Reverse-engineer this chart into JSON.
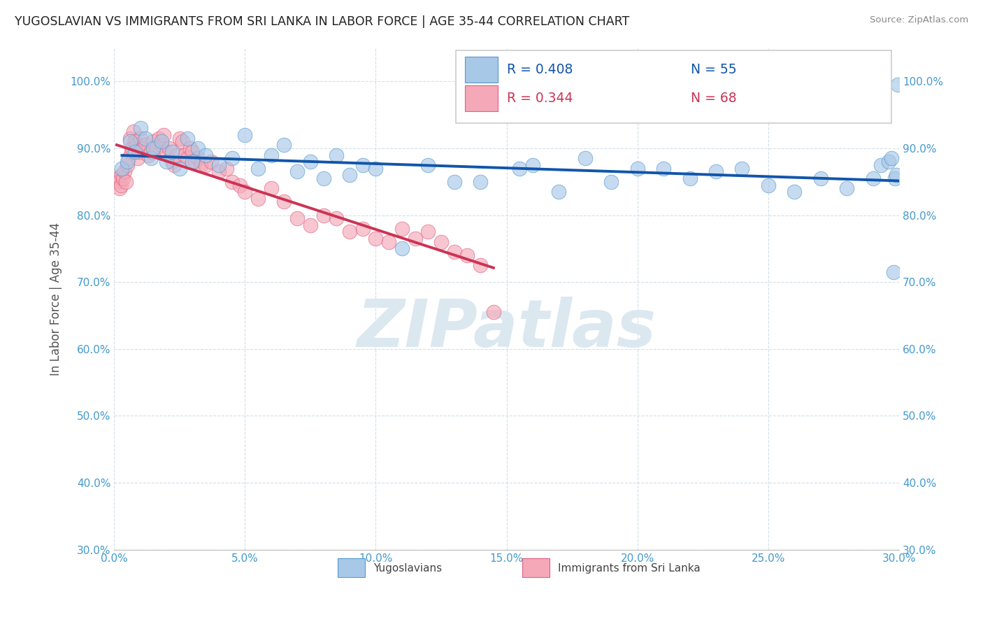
{
  "title": "YUGOSLAVIAN VS IMMIGRANTS FROM SRI LANKA IN LABOR FORCE | AGE 35-44 CORRELATION CHART",
  "source": "Source: ZipAtlas.com",
  "ylabel": "In Labor Force | Age 35-44",
  "xlim": [
    0.0,
    30.0
  ],
  "ylim": [
    30.0,
    105.0
  ],
  "xtick_vals": [
    0,
    5,
    10,
    15,
    20,
    25,
    30
  ],
  "ytick_vals": [
    30,
    40,
    50,
    60,
    70,
    80,
    90,
    100
  ],
  "blue_R": 0.408,
  "blue_N": 55,
  "pink_R": 0.344,
  "pink_N": 68,
  "legend_label_blue": "Yugoslavians",
  "legend_label_pink": "Immigrants from Sri Lanka",
  "blue_color": "#a8c8e8",
  "pink_color": "#f4a8b8",
  "blue_edge_color": "#5599cc",
  "pink_edge_color": "#e06080",
  "blue_line_color": "#1155aa",
  "pink_line_color": "#cc3355",
  "watermark": "ZIPatlas",
  "watermark_color": "#dce8f0",
  "blue_x": [
    0.3,
    0.5,
    0.6,
    0.8,
    1.0,
    1.2,
    1.4,
    1.5,
    1.8,
    2.0,
    2.2,
    2.5,
    2.8,
    3.0,
    3.2,
    3.5,
    4.0,
    4.5,
    5.0,
    5.5,
    6.0,
    6.5,
    7.0,
    7.5,
    8.0,
    8.5,
    9.0,
    9.5,
    10.0,
    11.0,
    12.0,
    13.0,
    14.0,
    15.5,
    16.0,
    17.0,
    18.0,
    19.0,
    20.0,
    21.0,
    22.0,
    23.0,
    24.0,
    25.0,
    26.0,
    27.0,
    28.0,
    29.0,
    29.3,
    29.6,
    29.7,
    29.8,
    29.85,
    29.9,
    29.95
  ],
  "blue_y": [
    87.0,
    88.0,
    91.0,
    89.5,
    93.0,
    91.5,
    88.5,
    90.0,
    91.0,
    88.0,
    89.5,
    87.0,
    91.5,
    88.0,
    90.0,
    89.0,
    87.5,
    88.5,
    92.0,
    87.0,
    89.0,
    90.5,
    86.5,
    88.0,
    85.5,
    89.0,
    86.0,
    87.5,
    87.0,
    75.0,
    87.5,
    85.0,
    85.0,
    87.0,
    87.5,
    83.5,
    88.5,
    85.0,
    87.0,
    87.0,
    85.5,
    86.5,
    87.0,
    84.5,
    83.5,
    85.5,
    84.0,
    85.5,
    87.5,
    88.0,
    88.5,
    71.5,
    85.5,
    86.0,
    99.5
  ],
  "pink_x": [
    0.1,
    0.15,
    0.2,
    0.25,
    0.3,
    0.35,
    0.4,
    0.45,
    0.5,
    0.55,
    0.6,
    0.65,
    0.7,
    0.75,
    0.8,
    0.85,
    0.9,
    0.95,
    1.0,
    1.1,
    1.2,
    1.3,
    1.4,
    1.5,
    1.6,
    1.7,
    1.8,
    1.9,
    2.0,
    2.1,
    2.2,
    2.3,
    2.4,
    2.5,
    2.6,
    2.7,
    2.8,
    2.9,
    3.0,
    3.1,
    3.2,
    3.3,
    3.5,
    3.7,
    4.0,
    4.3,
    4.5,
    4.8,
    5.0,
    5.5,
    6.0,
    6.5,
    7.0,
    7.5,
    8.0,
    8.5,
    9.0,
    9.5,
    10.0,
    10.5,
    11.0,
    11.5,
    12.0,
    12.5,
    13.0,
    13.5,
    14.0,
    14.5
  ],
  "pink_y": [
    85.5,
    85.0,
    84.0,
    84.5,
    86.0,
    85.5,
    86.5,
    85.0,
    87.5,
    88.5,
    91.5,
    89.5,
    90.0,
    92.5,
    91.0,
    90.5,
    88.5,
    89.5,
    91.5,
    90.0,
    90.5,
    89.0,
    89.5,
    91.0,
    90.0,
    91.5,
    90.5,
    92.0,
    89.5,
    90.0,
    88.0,
    87.5,
    89.0,
    91.5,
    91.0,
    89.0,
    88.5,
    90.0,
    89.5,
    88.0,
    88.5,
    87.5,
    87.5,
    88.0,
    86.5,
    87.0,
    85.0,
    84.5,
    83.5,
    82.5,
    84.0,
    82.0,
    79.5,
    78.5,
    80.0,
    79.5,
    77.5,
    78.0,
    76.5,
    76.0,
    78.0,
    76.5,
    77.5,
    76.0,
    74.5,
    74.0,
    72.5,
    65.5
  ]
}
